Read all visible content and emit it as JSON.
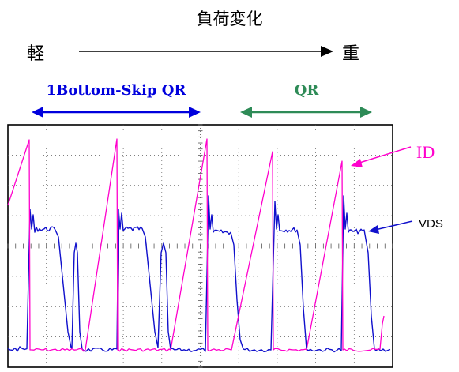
{
  "title": "負荷変化",
  "load_light_label": "軽",
  "load_heavy_label": "重",
  "mode_labels": {
    "skip": "1Bottom-Skip QR",
    "qr": "QR"
  },
  "colors": {
    "id_trace": "#ff00cc",
    "vds_trace": "#1010cc",
    "skip_label": "#0000dd",
    "qr_label": "#2e8b57",
    "grid": "#555555"
  },
  "chart_data": {
    "type": "line",
    "title": "",
    "xlabel": "",
    "ylabel": "",
    "grid": true,
    "divisions": {
      "x": 10,
      "y": 8
    },
    "series": [
      {
        "name": "ID",
        "role": "drain current",
        "color": "#ff00cc"
      },
      {
        "name": "VDS",
        "role": "drain-source voltage",
        "color": "#1010cc"
      }
    ],
    "cycles": [
      {
        "mode": "1Bottom-Skip QR",
        "ramp_start_x": 0.0,
        "peak_x": 0.05,
        "vds_bottom_skips": 1
      },
      {
        "mode": "1Bottom-Skip QR",
        "ramp_start_x": 1.75,
        "peak_x": 2.75,
        "vds_bottom_skips": 1
      },
      {
        "mode": "1Bottom-Skip QR",
        "ramp_start_x": 4.45,
        "peak_x": 5.15,
        "vds_bottom_skips": 1
      },
      {
        "mode": "QR",
        "ramp_start_x": 5.9,
        "peak_x": 6.9,
        "vds_bottom_skips": 0
      },
      {
        "mode": "QR",
        "ramp_start_x": 7.95,
        "peak_x": 9.05,
        "vds_bottom_skips": 0
      }
    ]
  }
}
